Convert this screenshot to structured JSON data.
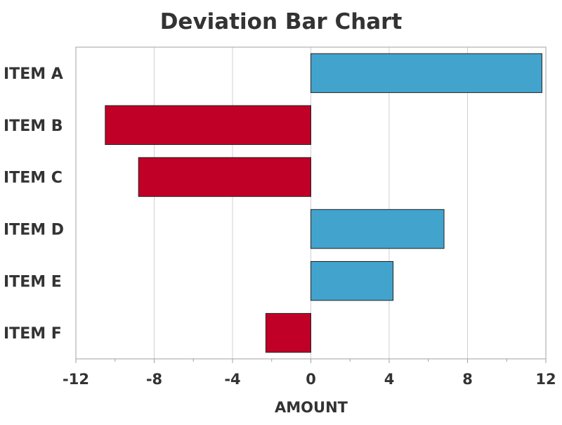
{
  "chart_data": {
    "type": "bar",
    "orientation": "horizontal",
    "title": "Deviation Bar Chart",
    "xlabel": "AMOUNT",
    "ylabel": "",
    "categories": [
      "ITEM A",
      "ITEM B",
      "ITEM C",
      "ITEM D",
      "ITEM E",
      "ITEM F"
    ],
    "values": [
      11.8,
      -10.5,
      -8.8,
      6.8,
      4.2,
      -2.3
    ],
    "xlim": [
      -12,
      12
    ],
    "xticks": [
      -12,
      -8,
      -4,
      0,
      4,
      8,
      12
    ],
    "xtick_labels": [
      "-12",
      "-8",
      "-4",
      "0",
      "4",
      "8",
      "12"
    ],
    "grid": "vertical",
    "legend": "none",
    "colors": {
      "positive": "#42a3cd",
      "negative": "#c00026",
      "bar_edge": "#222222",
      "grid": "#d0d0d0",
      "frame": "#a0a0a0",
      "text": "#333333"
    }
  }
}
